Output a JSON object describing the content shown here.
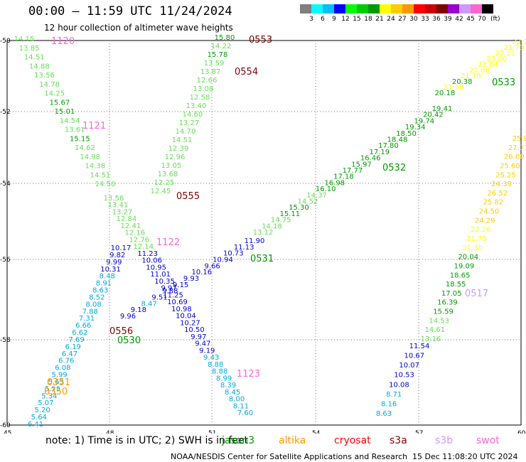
{
  "title": "00:00 — 11:59 UTC 11/24/2024",
  "subtitle": "12 hour collection of altimeter wave heights",
  "colorbar": {
    "colors": [
      "#7f7f7f",
      "#00ffff",
      "#00bfff",
      "#0000ff",
      "#00ff00",
      "#00cc00",
      "#009900",
      "#ffff00",
      "#ffcc00",
      "#ff9900",
      "#ff0000",
      "#cc0000",
      "#800000",
      "#9900cc",
      "#cc99ff",
      "#ff66cc",
      "#000000"
    ],
    "labels": [
      "3",
      "6",
      "9",
      "12",
      "15",
      "18",
      "21",
      "24",
      "27",
      "30",
      "33",
      "36",
      "39",
      "42",
      "45",
      "70"
    ],
    "unit": "(ft)"
  },
  "axes": {
    "x_ticks": [
      "45",
      "48",
      "51",
      "54",
      "57",
      "60"
    ],
    "y_ticks": [
      "-50",
      "-52",
      "-54",
      "-56",
      "-58",
      "-60"
    ]
  },
  "tracks": [
    {
      "id": "1120",
      "label_color": "#ff66cc",
      "points": [
        [
          "14.15",
          "#66dd55"
        ],
        [
          "13.85",
          "#66dd55"
        ],
        [
          "14.51",
          "#66dd55"
        ],
        [
          "14.88",
          "#66dd55"
        ],
        [
          "13.56",
          "#66dd55"
        ],
        [
          "14.78",
          "#66dd55"
        ],
        [
          "14.25",
          "#66dd55"
        ],
        [
          "15.67",
          "#009900"
        ],
        [
          "15.01",
          "#009900"
        ],
        [
          "14.54",
          "#66dd55"
        ],
        [
          "13.61",
          "#66dd55"
        ],
        [
          "15.15",
          "#009900"
        ],
        [
          "14.62",
          "#66dd55"
        ],
        [
          "14.98",
          "#66dd55"
        ],
        [
          "14.38",
          "#66dd55"
        ],
        [
          "14.51",
          "#66dd55"
        ],
        [
          "14.50",
          "#66dd55"
        ]
      ]
    },
    {
      "id": "0553",
      "label_color": "#800000",
      "points": [
        [
          "15.80",
          "#009900"
        ],
        [
          "14.22",
          "#66dd55"
        ],
        [
          "15.78",
          "#009900"
        ],
        [
          "13.59",
          "#66dd55"
        ],
        [
          "13.87",
          "#66dd55"
        ],
        [
          "12.66",
          "#66dd55"
        ],
        [
          "13.08",
          "#66dd55"
        ],
        [
          "12.58",
          "#66dd55"
        ],
        [
          "13.40",
          "#66dd55"
        ],
        [
          "14.60",
          "#66dd55"
        ],
        [
          "13.27",
          "#66dd55"
        ],
        [
          "14.70",
          "#66dd55"
        ],
        [
          "14.51",
          "#66dd55"
        ],
        [
          "12.39",
          "#66dd55"
        ],
        [
          "12.96",
          "#66dd55"
        ],
        [
          "13.05",
          "#66dd55"
        ],
        [
          "13.68",
          "#66dd55"
        ],
        [
          "12.25",
          "#66dd55"
        ],
        [
          "12.45",
          "#66dd55"
        ]
      ]
    },
    {
      "id": "0554",
      "label_color": "#800000",
      "points": []
    },
    {
      "id": "1121",
      "label_color": "#ff66cc",
      "points": []
    },
    {
      "id": "0555",
      "label_color": "#800000",
      "points": [
        [
          "13.56",
          "#66dd55"
        ],
        [
          "13.41",
          "#66dd55"
        ],
        [
          "13.27",
          "#66dd55"
        ],
        [
          "12.84",
          "#66dd55"
        ],
        [
          "12.41",
          "#66dd55"
        ],
        [
          "12.16",
          "#66dd55"
        ],
        [
          "12.76",
          "#66dd55"
        ],
        [
          "12.14",
          "#66dd55"
        ],
        [
          "11.23",
          "#0000cc"
        ],
        [
          "10.06",
          "#0000cc"
        ],
        [
          "10.95",
          "#0000cc"
        ],
        [
          "11.01",
          "#0000cc"
        ],
        [
          "10.35",
          "#0000cc"
        ],
        [
          "9.97",
          "#0000cc"
        ],
        [
          "11.25",
          "#0000cc"
        ],
        [
          "10.69",
          "#0000cc"
        ],
        [
          "10.98",
          "#0000cc"
        ],
        [
          "10.04",
          "#0000cc"
        ],
        [
          "10.27",
          "#0000cc"
        ],
        [
          "10.50",
          "#0000cc"
        ],
        [
          "9.97",
          "#0000cc"
        ],
        [
          "9.47",
          "#0000cc"
        ],
        [
          "9.19",
          "#0000cc"
        ],
        [
          "9.43",
          "#00aadd"
        ],
        [
          "8.88",
          "#00aadd"
        ],
        [
          "8.88",
          "#00aadd"
        ],
        [
          "8.99",
          "#00aadd"
        ],
        [
          "8.39",
          "#00aadd"
        ],
        [
          "8.45",
          "#00aadd"
        ],
        [
          "8.00",
          "#00aadd"
        ],
        [
          "8.11",
          "#00aadd"
        ],
        [
          "7.60",
          "#00aadd"
        ]
      ]
    },
    {
      "id": "1122",
      "label_color": "#ff66cc",
      "points": []
    },
    {
      "id": "1123",
      "label_color": "#ff66cc",
      "points": []
    },
    {
      "id": "0556",
      "label_color": "#800000",
      "points": [
        [
          "10.17",
          "#0000cc"
        ],
        [
          "9.82",
          "#0000cc"
        ],
        [
          "9.99",
          "#0000cc"
        ],
        [
          "10.31",
          "#0000cc"
        ],
        [
          "8.48",
          "#00aadd"
        ],
        [
          "8.91",
          "#00aadd"
        ],
        [
          "8.63",
          "#00aadd"
        ],
        [
          "8.52",
          "#00aadd"
        ],
        [
          "8.08",
          "#00aadd"
        ],
        [
          "7.88",
          "#00aadd"
        ],
        [
          "7.31",
          "#00aadd"
        ],
        [
          "6.66",
          "#00aadd"
        ],
        [
          "6.62",
          "#00aadd"
        ],
        [
          "7.69",
          "#00aadd"
        ],
        [
          "6.19",
          "#00aadd"
        ],
        [
          "6.47",
          "#00aadd"
        ],
        [
          "6.76",
          "#00aadd"
        ],
        [
          "6.08",
          "#00aadd"
        ],
        [
          "5.99",
          "#00aadd"
        ],
        [
          "5.63",
          "#00aadd"
        ],
        [
          "5.25",
          "#00aadd"
        ],
        [
          "5.34",
          "#00aadd"
        ],
        [
          "5.07",
          "#00aadd"
        ],
        [
          "5.20",
          "#00aadd"
        ],
        [
          "5.64",
          "#00aadd"
        ],
        [
          "6.41",
          "#00aadd"
        ]
      ]
    },
    {
      "id": "0351",
      "label_color": "#ff9900",
      "points": []
    },
    {
      "id": "0350",
      "label_color": "#ff9900",
      "points": []
    },
    {
      "id": "0530",
      "label_color": "#009900",
      "points": [
        [
          "9.96",
          "#0000cc"
        ],
        [
          "9.18",
          "#0000cc"
        ],
        [
          "8.47",
          "#00aadd"
        ],
        [
          "9.51",
          "#0000cc"
        ],
        [
          "9.88",
          "#0000cc"
        ],
        [
          "9.15",
          "#0000cc"
        ],
        [
          "9.93",
          "#0000cc"
        ],
        [
          "10.16",
          "#0000cc"
        ],
        [
          "9.66",
          "#0000cc"
        ],
        [
          "10.94",
          "#0000cc"
        ],
        [
          "10.73",
          "#0000cc"
        ],
        [
          "11.13",
          "#0000cc"
        ],
        [
          "11.90",
          "#0000cc"
        ]
      ]
    },
    {
      "id": "0531",
      "label_color": "#009900",
      "points": [
        [
          "13.12",
          "#66dd55"
        ],
        [
          "14.18",
          "#66dd55"
        ],
        [
          "14.75",
          "#66dd55"
        ],
        [
          "15.11",
          "#009900"
        ],
        [
          "15.30",
          "#009900"
        ],
        [
          "14.52",
          "#66dd55"
        ],
        [
          "14.37",
          "#66dd55"
        ],
        [
          "16.10",
          "#009900"
        ],
        [
          "16.98",
          "#009900"
        ],
        [
          "17.18",
          "#009900"
        ],
        [
          "17.77",
          "#009900"
        ],
        [
          "15.97",
          "#009900"
        ],
        [
          "16.46",
          "#009900"
        ],
        [
          "17.19",
          "#009900"
        ],
        [
          "17.80",
          "#009900"
        ],
        [
          "18.48",
          "#009900"
        ],
        [
          "18.50",
          "#009900"
        ],
        [
          "19.34",
          "#009900"
        ],
        [
          "19.74",
          "#009900"
        ],
        [
          "20.42",
          "#009900"
        ],
        [
          "19.41",
          "#009900"
        ]
      ]
    },
    {
      "id": "0532",
      "label_color": "#009900",
      "points": []
    },
    {
      "id": "0533",
      "label_color": "#009900",
      "points": [
        [
          "20.18",
          "#009900"
        ],
        [
          "21.38",
          "#ffff00"
        ],
        [
          "20.38",
          "#009900"
        ],
        [
          "21.18",
          "#ffff00"
        ],
        [
          "21.08",
          "#ffff00"
        ],
        [
          "22.04",
          "#ffff00"
        ],
        [
          "23.00",
          "#ffff00"
        ],
        [
          "22.21",
          "#ffff00"
        ],
        [
          "21.73",
          "#ffff00"
        ],
        [
          "22.12",
          "#ffff00"
        ]
      ]
    },
    {
      "id": "0517",
      "label_color": "#cc99ff",
      "points": [
        [
          "25.81",
          "#ffcc00"
        ],
        [
          "27.77",
          "#ffcc00"
        ],
        [
          "26.00",
          "#ffcc00"
        ],
        [
          "25.60",
          "#ffcc00"
        ],
        [
          "25.25",
          "#ffcc00"
        ],
        [
          "24.39",
          "#ffcc00"
        ],
        [
          "26.52",
          "#ffcc00"
        ],
        [
          "25.82",
          "#ffcc00"
        ],
        [
          "24.50",
          "#ffcc00"
        ],
        [
          "24.29",
          "#ffcc00"
        ],
        [
          "22.26",
          "#ffff00"
        ],
        [
          "21.75",
          "#ffff00"
        ],
        [
          "21.30",
          "#ffff00"
        ],
        [
          "20.04",
          "#009900"
        ],
        [
          "19.09",
          "#009900"
        ],
        [
          "18.65",
          "#009900"
        ],
        [
          "18.55",
          "#009900"
        ],
        [
          "17.05",
          "#009900"
        ],
        [
          "16.39",
          "#009900"
        ],
        [
          "15.59",
          "#009900"
        ],
        [
          "14.53",
          "#66dd55"
        ],
        [
          "14.61",
          "#66dd55"
        ],
        [
          "13.16",
          "#66dd55"
        ]
      ]
    },
    {
      "id": "",
      "label_color": "#0000cc",
      "points": [
        [
          "11.54",
          "#0000cc"
        ],
        [
          "10.67",
          "#0000cc"
        ],
        [
          "10.07",
          "#0000cc"
        ],
        [
          "10.53",
          "#0000cc"
        ],
        [
          "10.08",
          "#0000cc"
        ],
        [
          "8.71",
          "#00aadd"
        ],
        [
          "8.16",
          "#00aadd"
        ],
        [
          "8.63",
          "#00aadd"
        ]
      ]
    }
  ],
  "footer": {
    "note": "note:  1) Time is in UTC; 2) SWH is in feet",
    "satellites": [
      {
        "name": "jason3",
        "color": "#009900"
      },
      {
        "name": "altika",
        "color": "#ff9900"
      },
      {
        "name": "cryosat",
        "color": "#ff0000"
      },
      {
        "name": "s3a",
        "color": "#800000"
      },
      {
        "name": "s3b",
        "color": "#cc99ff"
      },
      {
        "name": "swot",
        "color": "#ff66cc"
      }
    ],
    "credit": "NOAA/NESDIS Center for Satellite Applications and Research",
    "timestamp": "15 Dec 11:08:20 UTC 2024"
  }
}
